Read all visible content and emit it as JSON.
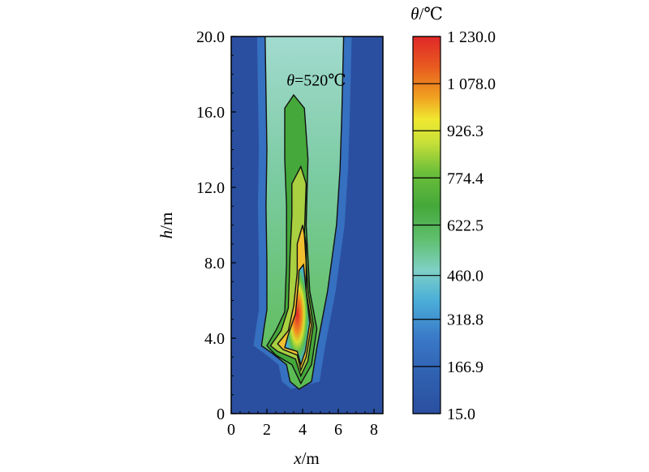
{
  "chart_data": {
    "type": "heatmap",
    "xlabel": {
      "symbol": "x",
      "unit": "/m"
    },
    "ylabel": {
      "symbol": "h",
      "unit": "/m"
    },
    "xlim": [
      0,
      8.5
    ],
    "ylim": [
      0,
      20
    ],
    "x_ticks": [
      "0",
      "2",
      "4",
      "6",
      "8"
    ],
    "y_ticks": [
      "0",
      "4.0",
      "8.0",
      "12.0",
      "16.0",
      "20.0"
    ],
    "annotation": {
      "symbol": "θ",
      "text": "=520℃",
      "x": 3.1,
      "y": 17.4
    },
    "colorbar": {
      "title": {
        "symbol": "θ",
        "unit": "/℃"
      },
      "min": 15.0,
      "max": 1230.0,
      "tick_values": [
        15.0,
        166.9,
        318.8,
        460.0,
        622.5,
        774.4,
        926.3,
        1078.0,
        1230.0
      ],
      "tick_labels": [
        "15.0",
        "166.9",
        "318.8",
        "460.0",
        "622.5",
        "774.4",
        "926.3",
        "1 078.0",
        "1 230.0"
      ],
      "contour_levels": [
        166.9,
        926.3,
        1078.0
      ],
      "colors": [
        "#2b4fa0",
        "#3a78c8",
        "#4aaed8",
        "#7fd0c6",
        "#5cbf4a",
        "#45a83a",
        "#a8d040",
        "#f0e830",
        "#f0a020",
        "#e85a20",
        "#e02828"
      ]
    },
    "field": {
      "description_levels": [
        {
          "level": 520,
          "points": [
            [
              1.9,
              20
            ],
            [
              1.95,
              17
            ],
            [
              2.0,
              14
            ],
            [
              1.95,
              11
            ],
            [
              2.0,
              8
            ],
            [
              2.0,
              5.5
            ],
            [
              1.85,
              4.6
            ],
            [
              1.7,
              3.6
            ],
            [
              2.3,
              3.2
            ],
            [
              3.1,
              2.6
            ],
            [
              3.3,
              1.7
            ],
            [
              3.8,
              1.3
            ],
            [
              4.5,
              1.7
            ],
            [
              4.8,
              3.5
            ],
            [
              5.4,
              6.5
            ],
            [
              5.9,
              10
            ],
            [
              6.1,
              13
            ],
            [
              6.2,
              16
            ],
            [
              6.3,
              20
            ]
          ]
        },
        {
          "level": 700,
          "points": [
            [
              3.0,
              16.2
            ],
            [
              3.5,
              16.9
            ],
            [
              4.1,
              16.2
            ],
            [
              4.3,
              13.5
            ],
            [
              4.2,
              10
            ],
            [
              4.4,
              6.5
            ],
            [
              4.8,
              4.5
            ],
            [
              4.5,
              2.6
            ],
            [
              3.9,
              1.6
            ],
            [
              3.4,
              2.6
            ],
            [
              2.5,
              3.1
            ],
            [
              2.0,
              3.6
            ],
            [
              2.5,
              4.4
            ],
            [
              3.0,
              5.4
            ],
            [
              3.1,
              8
            ],
            [
              3.1,
              11
            ],
            [
              3.0,
              13.5
            ]
          ]
        },
        {
          "level": 800,
          "points": [
            [
              3.4,
              12.2
            ],
            [
              3.9,
              13.1
            ],
            [
              4.2,
              12.2
            ],
            [
              4.1,
              9.5
            ],
            [
              4.3,
              6.5
            ],
            [
              4.6,
              4.7
            ],
            [
              4.3,
              2.8
            ],
            [
              3.9,
              2.0
            ],
            [
              3.6,
              2.9
            ],
            [
              2.6,
              3.3
            ],
            [
              2.2,
              3.6
            ],
            [
              2.8,
              4.4
            ],
            [
              3.2,
              5.6
            ],
            [
              3.3,
              8.5
            ],
            [
              3.4,
              10.5
            ]
          ]
        },
        {
          "level": 926,
          "points": [
            [
              3.7,
              9.0
            ],
            [
              4.0,
              10.0
            ],
            [
              4.2,
              9.0
            ],
            [
              4.2,
              6.5
            ],
            [
              4.5,
              4.7
            ],
            [
              4.2,
              3.0
            ],
            [
              3.9,
              2.3
            ],
            [
              3.7,
              3.1
            ],
            [
              2.9,
              3.4
            ],
            [
              2.6,
              3.7
            ],
            [
              3.2,
              4.4
            ],
            [
              3.5,
              5.7
            ],
            [
              3.7,
              7.5
            ]
          ]
        },
        {
          "level": 1078,
          "points": [
            [
              3.8,
              7.6
            ],
            [
              4.05,
              7.9
            ],
            [
              4.2,
              6.5
            ],
            [
              4.4,
              4.8
            ],
            [
              4.15,
              3.3
            ],
            [
              3.9,
              2.6
            ],
            [
              3.7,
              3.3
            ],
            [
              3.0,
              3.5
            ],
            [
              3.2,
              4.2
            ],
            [
              3.6,
              5.3
            ],
            [
              3.75,
              6.8
            ]
          ]
        }
      ]
    }
  }
}
